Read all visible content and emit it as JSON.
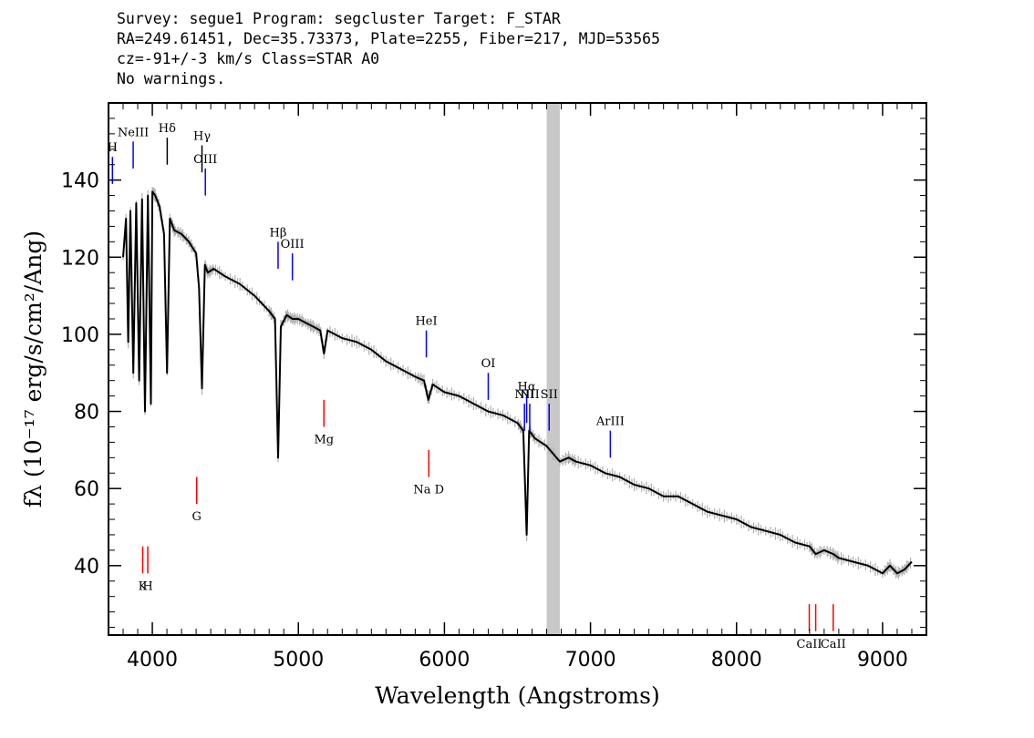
{
  "header": {
    "line1": "Survey: segue1 Program: segcluster Target: F_STAR",
    "line2": "RA=249.61451, Dec=35.73373, Plate=2255, Fiber=217, MJD=53565",
    "line3": "cz=-91+/-3 km/s Class=STAR A0",
    "line4": "No warnings."
  },
  "chart_data": {
    "type": "line",
    "xlabel": "Wavelength (Angstroms)",
    "ylabel": "fλ (10⁻¹⁷ erg/s/cm²/Ang)",
    "xlim": [
      3700,
      9300
    ],
    "ylim": [
      22,
      160
    ],
    "xticks": [
      4000,
      5000,
      6000,
      7000,
      8000,
      9000
    ],
    "yticks": [
      40,
      60,
      80,
      100,
      120,
      140
    ],
    "masked_band": [
      6700,
      6790
    ],
    "series": [
      {
        "x": [
          3800,
          3820,
          3835,
          3850,
          3870,
          3890,
          3910,
          3930,
          3950,
          3970,
          3990,
          4000,
          4020,
          4050,
          4080,
          4101,
          4120,
          4150,
          4200,
          4250,
          4300,
          4320,
          4340,
          4360,
          4380,
          4420,
          4500,
          4600,
          4700,
          4800,
          4840,
          4861,
          4880,
          4920,
          4960,
          5000,
          5050,
          5100,
          5150,
          5175,
          5200,
          5300,
          5400,
          5500,
          5600,
          5700,
          5800,
          5860,
          5890,
          5920,
          6000,
          6100,
          6200,
          6300,
          6400,
          6500,
          6540,
          6563,
          6580,
          6620,
          6700,
          6790,
          6850,
          6900,
          7000,
          7100,
          7200,
          7300,
          7400,
          7500,
          7600,
          7700,
          7800,
          7900,
          8000,
          8100,
          8200,
          8300,
          8400,
          8500,
          8542,
          8600,
          8662,
          8700,
          8800,
          8900,
          9000,
          9050,
          9100,
          9150,
          9200
        ],
        "y": [
          120,
          130,
          98,
          132,
          90,
          134,
          88,
          135,
          80,
          136,
          82,
          137,
          136,
          133,
          126,
          90,
          130,
          127,
          126,
          124,
          121,
          112,
          86,
          118,
          116,
          117,
          115,
          113,
          110,
          106,
          104,
          68,
          102,
          105,
          104,
          104,
          103,
          102,
          101,
          95,
          101,
          99,
          98,
          96,
          93,
          91,
          89,
          88,
          83,
          87,
          85,
          84,
          82,
          80,
          79,
          77,
          75,
          48,
          75,
          73,
          71,
          67,
          68,
          67,
          66,
          64,
          63,
          61,
          60,
          58,
          58,
          56,
          54,
          53,
          52,
          50,
          49,
          48,
          46,
          45,
          43,
          44,
          43,
          42,
          41,
          40,
          38,
          40,
          38,
          39,
          41
        ]
      }
    ],
    "line_labels": [
      {
        "text": "H",
        "wavelength": 3727,
        "color": "#0000ff",
        "level": 146,
        "len": 7
      },
      {
        "text": "NeIII",
        "wavelength": 3869,
        "color": "#0000ff",
        "level": 150,
        "len": 7
      },
      {
        "text": "Hδ",
        "wavelength": 4102,
        "color": "#000000",
        "level": 151,
        "len": 7
      },
      {
        "text": "Hγ",
        "wavelength": 4340,
        "color": "#000000",
        "level": 149,
        "len": 7
      },
      {
        "text": "OIII",
        "wavelength": 4363,
        "color": "#0000ff",
        "level": 143,
        "len": 7
      },
      {
        "text": "Hβ",
        "wavelength": 4861,
        "color": "#0000ff",
        "level": 124,
        "len": 7
      },
      {
        "text": "OIII",
        "wavelength": 4959,
        "color": "#0000ff",
        "level": 121,
        "len": 7
      },
      {
        "text": "HeI",
        "wavelength": 5876,
        "color": "#0000ff",
        "level": 101,
        "len": 7
      },
      {
        "text": "OI",
        "wavelength": 6300,
        "color": "#0000ff",
        "level": 90,
        "len": 7
      },
      {
        "text": "NII",
        "wavelength": 6548,
        "color": "#0000ff",
        "level": 82,
        "len": 7
      },
      {
        "text": "Hα",
        "wavelength": 6563,
        "color": "#0000ff",
        "level": 84,
        "len": 7
      },
      {
        "text": "NII",
        "wavelength": 6584,
        "color": "#0000ff",
        "level": 82,
        "len": 7
      },
      {
        "text": "SII",
        "wavelength": 6717,
        "color": "#0000ff",
        "level": 82,
        "len": 7
      },
      {
        "text": "ArIII",
        "wavelength": 7136,
        "color": "#0000ff",
        "level": 75,
        "len": 7
      },
      {
        "text": "Mg",
        "wavelength": 5175,
        "color": "#ff0000",
        "level": 83,
        "len": 7
      },
      {
        "text": "G",
        "wavelength": 4304,
        "color": "#ff0000",
        "level": 63,
        "len": 7
      },
      {
        "text": "Na D",
        "wavelength": 5893,
        "color": "#ff0000",
        "level": 70,
        "len": 7
      },
      {
        "text": "K",
        "wavelength": 3934,
        "color": "#ff0000",
        "level": 45,
        "len": 7
      },
      {
        "text": "H",
        "wavelength": 3969,
        "color": "#ff0000",
        "level": 45,
        "len": 7
      },
      {
        "text": "CaII",
        "wavelength": 8498,
        "color": "#ff0000",
        "level": 30,
        "len": 7
      },
      {
        "text": "CaII",
        "wavelength": 8542,
        "color": "#ff0000",
        "level": 30,
        "len": 7
      },
      {
        "text": "CaII",
        "wavelength": 8662,
        "color": "#ff0000",
        "level": 30,
        "len": 7
      }
    ]
  }
}
